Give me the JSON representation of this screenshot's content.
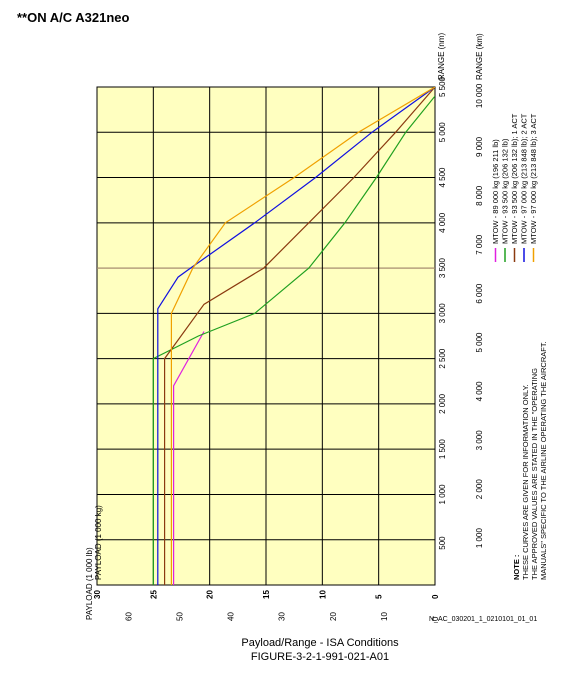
{
  "header": {
    "title": "**ON A/C A321neo"
  },
  "caption": {
    "line1": "Payload/Range - ISA Conditions",
    "line2": "FIGURE-3-2-1-991-021-A01"
  },
  "reference": "N_AC_030201_1_0210101_01_01",
  "note": {
    "heading": "NOTE :",
    "lines": [
      "THESE CURVES ARE GIVEN FOR INFORMATION ONLY.",
      "THE APPROVED VALUES ARE STATED IN THE \"OPERATING",
      "MANUALS\" SPECIFIC TO THE AIRLINE OPERATING THE AIRCRAFT."
    ]
  },
  "colors": {
    "plot_background": "#ffffc0",
    "grid": "#000000",
    "mtow_89000": "#e020e0",
    "mtow_93500": "#20a020",
    "mtow_93500_1act": "#8b3a10",
    "mtow_97000_2act": "#1010e0",
    "mtow_97000_3act": "#f0a000"
  },
  "chart_data": {
    "type": "line",
    "title": "Payload/Range - ISA Conditions",
    "orientation": "rotated 90 degrees counter-clockwise (range runs upward, payload runs leftward)",
    "xlabel": "RANGE (nm)",
    "xlabel_secondary": "RANGE (km)",
    "ylabel": "PAYLOAD (1 000 kg)",
    "ylabel_secondary": "PAYLOAD (1 000 lb)",
    "range_nm_ticks": [
      "500",
      "1 000",
      "1 500",
      "2 000",
      "2 500",
      "3 000",
      "3 500",
      "4 000",
      "4 500",
      "5 000",
      "5 500"
    ],
    "range_km_ticks": [
      "1 000",
      "2 000",
      "3 000",
      "4 000",
      "5 000",
      "6 000",
      "7 000",
      "8 000",
      "9 000",
      "10 000"
    ],
    "payload_kg_ticks": [
      "30",
      "25",
      "20",
      "15",
      "10",
      "5",
      "0"
    ],
    "payload_lb_ticks": [
      "60",
      "50",
      "40",
      "30",
      "20",
      "10",
      "0"
    ],
    "xlim_nm": [
      0,
      5500
    ],
    "ylim_1000kg": [
      0,
      30
    ],
    "grid": true,
    "legend_position": "right",
    "series": [
      {
        "name": "MTOW - 89 000 kg (196 211 lb)",
        "x": [
          0,
          2200,
          2800
        ],
        "y": [
          23.2,
          23.2,
          20.5
        ]
      },
      {
        "name": "MTOW - 93 500 kg (206 132 lb)",
        "x": [
          0,
          2500,
          2750,
          3000,
          3500,
          4000,
          4500,
          5000,
          5400
        ],
        "y": [
          25.0,
          25.0,
          21.0,
          16.0,
          11.2,
          8.0,
          5.2,
          2.6,
          0
        ]
      },
      {
        "name": "MTOW - 93 500 kg (206 132 lb); 1 ACT",
        "x": [
          0,
          2500,
          3100,
          3500,
          4000,
          4500,
          5000,
          5500,
          6000
        ],
        "y": [
          24.0,
          24.0,
          20.5,
          15.2,
          11.2,
          7.2,
          3.5,
          0,
          0
        ]
      },
      {
        "name": "MTOW - 97 000 kg (213 848 lb); 2 ACT",
        "x": [
          0,
          2850,
          3050,
          3400,
          3500,
          4000,
          4500,
          5000,
          5550,
          6500
        ],
        "y": [
          24.6,
          24.6,
          24.6,
          22.8,
          21.7,
          16.0,
          10.6,
          5.6,
          0,
          0
        ]
      },
      {
        "name": "MTOW - 97 000 kg (213 848 lb); 3 ACT",
        "x": [
          0,
          3000,
          3500,
          4000,
          4500,
          5000,
          5700,
          6500
        ],
        "y": [
          23.4,
          23.4,
          21.5,
          18.6,
          12.5,
          6.8,
          0,
          0
        ]
      }
    ]
  }
}
